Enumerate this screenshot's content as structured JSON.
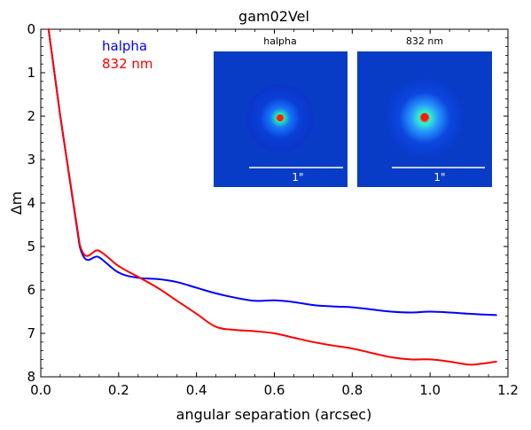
{
  "chart_data": {
    "type": "line",
    "title": "gam02Vel",
    "xlabel": "angular separation (arcsec)",
    "ylabel": "Δm",
    "xlim": [
      0.0,
      1.2
    ],
    "ylim": [
      8,
      0
    ],
    "y_inverted": true,
    "x_ticks": [
      "0.0",
      "0.2",
      "0.4",
      "0.6",
      "0.8",
      "1.0",
      "1.2"
    ],
    "y_ticks": [
      "0",
      "1",
      "2",
      "3",
      "4",
      "5",
      "6",
      "7",
      "8"
    ],
    "legend_position": "top-left",
    "series": [
      {
        "name": "halpha",
        "color": "#0000ff",
        "x": [
          0.02,
          0.05,
          0.1,
          0.15,
          0.2,
          0.25,
          0.3,
          0.35,
          0.4,
          0.45,
          0.5,
          0.55,
          0.6,
          0.65,
          0.7,
          0.75,
          0.8,
          0.85,
          0.9,
          0.95,
          1.0,
          1.05,
          1.1,
          1.17
        ],
        "y": [
          0.0,
          2.0,
          5.0,
          5.25,
          5.6,
          5.72,
          5.75,
          5.82,
          5.95,
          6.08,
          6.18,
          6.25,
          6.24,
          6.28,
          6.35,
          6.38,
          6.4,
          6.45,
          6.5,
          6.52,
          6.5,
          6.52,
          6.55,
          6.58
        ]
      },
      {
        "name": "832 nm",
        "color": "#ff0000",
        "x": [
          0.02,
          0.05,
          0.1,
          0.15,
          0.2,
          0.25,
          0.3,
          0.35,
          0.4,
          0.45,
          0.5,
          0.55,
          0.6,
          0.65,
          0.7,
          0.75,
          0.8,
          0.85,
          0.9,
          0.95,
          1.0,
          1.05,
          1.1,
          1.13,
          1.17
        ],
        "y": [
          0.0,
          2.0,
          4.95,
          5.1,
          5.45,
          5.7,
          5.95,
          6.25,
          6.55,
          6.85,
          6.92,
          6.95,
          7.0,
          7.1,
          7.2,
          7.28,
          7.35,
          7.45,
          7.55,
          7.6,
          7.6,
          7.65,
          7.72,
          7.7,
          7.65
        ]
      }
    ],
    "insets": [
      {
        "title": "halpha",
        "scale_label": "1\""
      },
      {
        "title": "832 nm",
        "scale_label": "1\""
      }
    ]
  }
}
